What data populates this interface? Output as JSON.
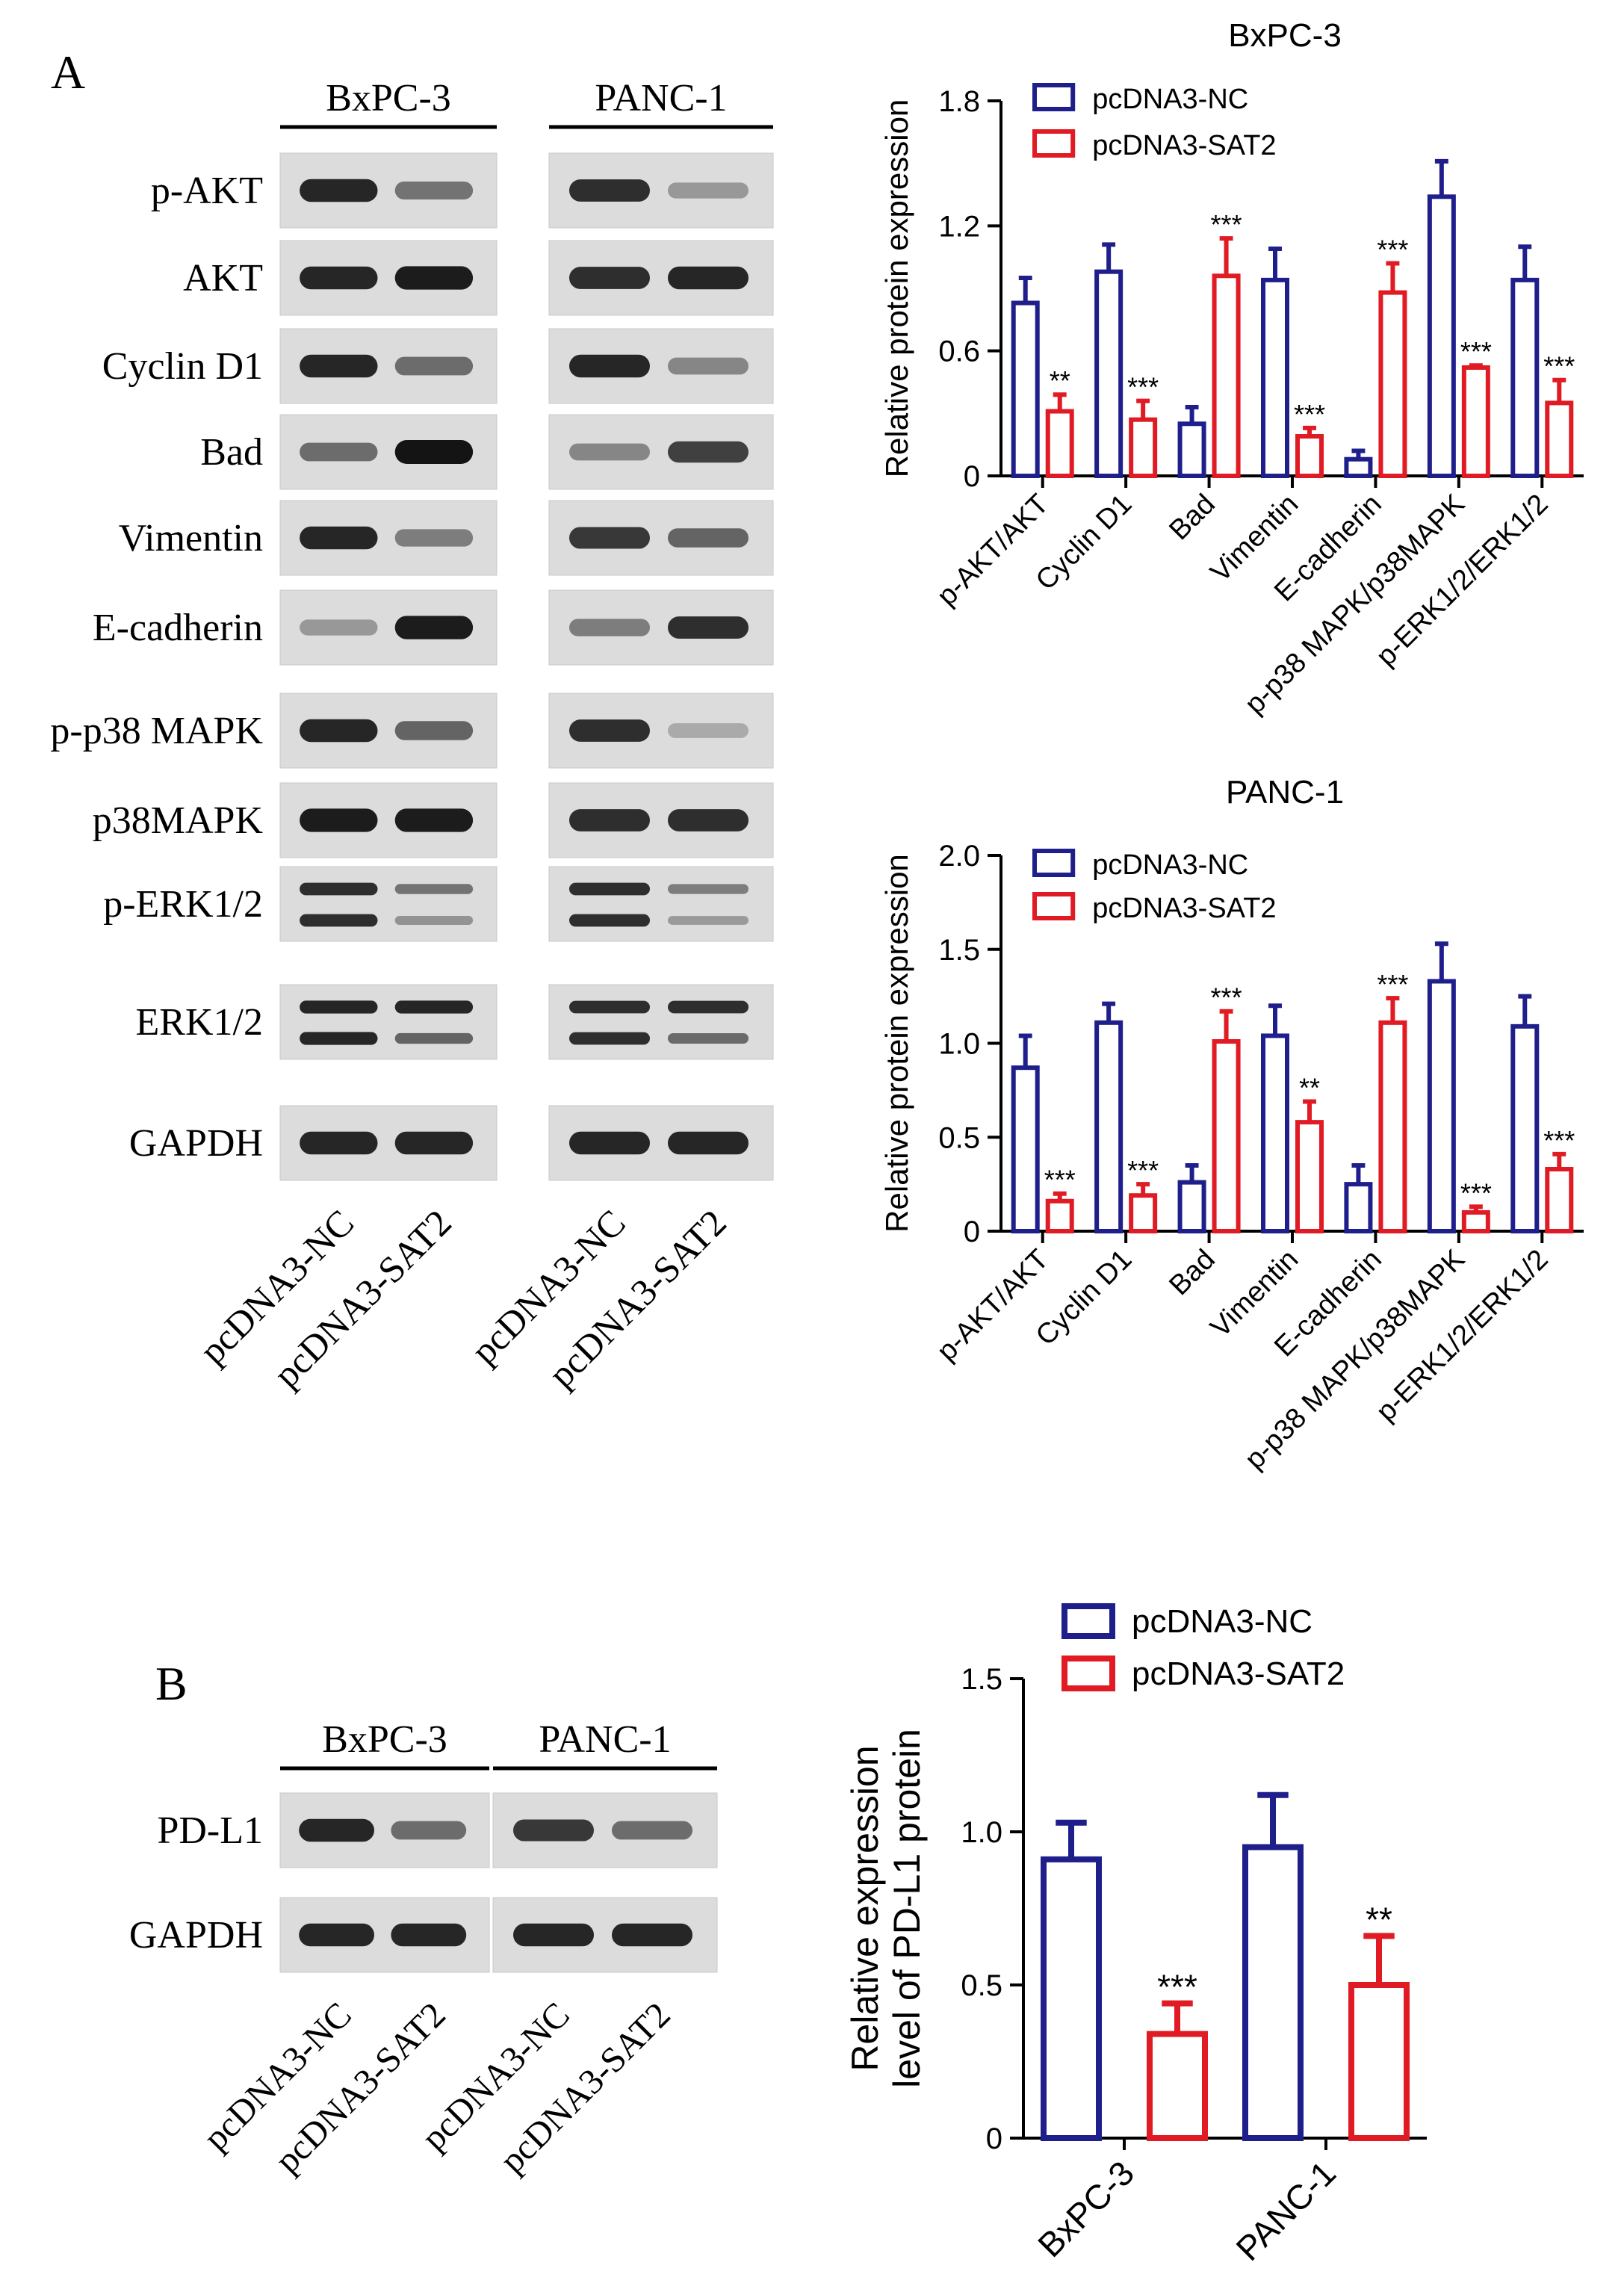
{
  "colors": {
    "nc": "#1f1f8c",
    "sat2": "#e01b24",
    "axis": "#000000",
    "blot_bg": "#dcdcdc",
    "band": "#141414"
  },
  "panelA": {
    "label": "A",
    "cell_lines": [
      "BxPC-3",
      "PANC-1"
    ],
    "rows": [
      "p-AKT",
      "AKT",
      "Cyclin D1",
      "Bad",
      "Vimentin",
      "E-cadherin",
      "p-p38 MAPK",
      "p38MAPK",
      "p-ERK1/2",
      "ERK1/2",
      "GAPDH"
    ],
    "lanes": [
      "pcDNA3-NC",
      "pcDNA3-SAT2",
      "pcDNA3-NC",
      "pcDNA3-SAT2"
    ],
    "bands": [
      [
        0.9,
        0.45,
        0.85,
        0.25
      ],
      [
        0.9,
        0.95,
        0.85,
        0.9
      ],
      [
        0.9,
        0.5,
        0.9,
        0.35
      ],
      [
        0.5,
        1.0,
        0.35,
        0.75
      ],
      [
        0.9,
        0.4,
        0.8,
        0.55
      ],
      [
        0.25,
        0.95,
        0.4,
        0.85
      ],
      [
        0.9,
        0.55,
        0.85,
        0.15
      ],
      [
        0.95,
        0.95,
        0.85,
        0.85
      ],
      [
        0.85,
        0.45,
        0.85,
        0.4
      ],
      [
        0.9,
        0.9,
        0.85,
        0.85
      ],
      [
        0.9,
        0.9,
        0.9,
        0.9
      ]
    ]
  },
  "panelB": {
    "label": "B",
    "cell_lines": [
      "BxPC-3",
      "PANC-1"
    ],
    "rows": [
      "PD-L1",
      "GAPDH"
    ],
    "lanes": [
      "pcDNA3-NC",
      "pcDNA3-SAT2",
      "pcDNA3-NC",
      "pcDNA3-SAT2"
    ],
    "bands": [
      [
        0.9,
        0.5,
        0.8,
        0.5
      ],
      [
        0.9,
        0.9,
        0.9,
        0.9
      ]
    ]
  },
  "chart_data": [
    {
      "type": "bar",
      "title": "BxPC-3",
      "ylabel": "Relative protein expression",
      "ylim": [
        0,
        1.8
      ],
      "yticks": [
        "0",
        "0.6",
        "1.2",
        "1.8"
      ],
      "categories": [
        "p-AKT/AKT",
        "Cyclin D1",
        "Bad",
        "Vimentin",
        "E-cadherin",
        "p-p38 MAPK/p38MAPK",
        "p-ERK1/2/ERK1/2"
      ],
      "series": [
        {
          "name": "pcDNA3-NC",
          "values": [
            0.83,
            0.98,
            0.25,
            0.94,
            0.08,
            1.34,
            0.94
          ],
          "errors": [
            0.12,
            0.13,
            0.08,
            0.15,
            0.04,
            0.17,
            0.16
          ],
          "sig": [
            "",
            "",
            "",
            "",
            "",
            "",
            ""
          ]
        },
        {
          "name": "pcDNA3-SAT2",
          "values": [
            0.31,
            0.27,
            0.96,
            0.19,
            0.88,
            0.52,
            0.35
          ],
          "errors": [
            0.08,
            0.09,
            0.18,
            0.04,
            0.14,
            0.01,
            0.11
          ],
          "sig": [
            "**",
            "***",
            "***",
            "***",
            "***",
            "***",
            "***"
          ]
        }
      ],
      "legend": "top-left"
    },
    {
      "type": "bar",
      "title": "PANC-1",
      "ylabel": "Relative protein expression",
      "ylim": [
        0,
        2.0
      ],
      "yticks": [
        "0",
        "0.5",
        "1.0",
        "1.5",
        "2.0"
      ],
      "categories": [
        "p-AKT/AKT",
        "Cyclin D1",
        "Bad",
        "Vimentin",
        "E-cadherin",
        "p-p38 MAPK/p38MAPK",
        "p-ERK1/2/ERK1/2"
      ],
      "series": [
        {
          "name": "pcDNA3-NC",
          "values": [
            0.87,
            1.11,
            0.26,
            1.04,
            0.25,
            1.33,
            1.09
          ],
          "errors": [
            0.17,
            0.1,
            0.09,
            0.16,
            0.1,
            0.2,
            0.16
          ],
          "sig": [
            "",
            "",
            "",
            "",
            "",
            "",
            ""
          ]
        },
        {
          "name": "pcDNA3-SAT2",
          "values": [
            0.16,
            0.19,
            1.01,
            0.58,
            1.11,
            0.1,
            0.33
          ],
          "errors": [
            0.04,
            0.06,
            0.16,
            0.11,
            0.13,
            0.03,
            0.08
          ],
          "sig": [
            "***",
            "***",
            "***",
            "**",
            "***",
            "***",
            "***"
          ]
        }
      ],
      "legend": "top-left"
    },
    {
      "type": "bar",
      "title": "",
      "ylabel": "Relative expression level of PD-L1 protein",
      "ylabel_lines": [
        "Relative expression",
        "level of PD-L1 protein"
      ],
      "ylim": [
        0,
        1.5
      ],
      "yticks": [
        "0",
        "0.5",
        "1.0",
        "1.5"
      ],
      "categories": [
        "BxPC-3",
        "PANC-1"
      ],
      "series": [
        {
          "name": "pcDNA3-NC",
          "values": [
            0.91,
            0.95
          ],
          "errors": [
            0.12,
            0.17
          ],
          "sig": [
            "",
            ""
          ]
        },
        {
          "name": "pcDNA3-SAT2",
          "values": [
            0.34,
            0.5
          ],
          "errors": [
            0.1,
            0.16
          ],
          "sig": [
            "***",
            "**"
          ]
        }
      ],
      "legend": "top-left"
    }
  ]
}
